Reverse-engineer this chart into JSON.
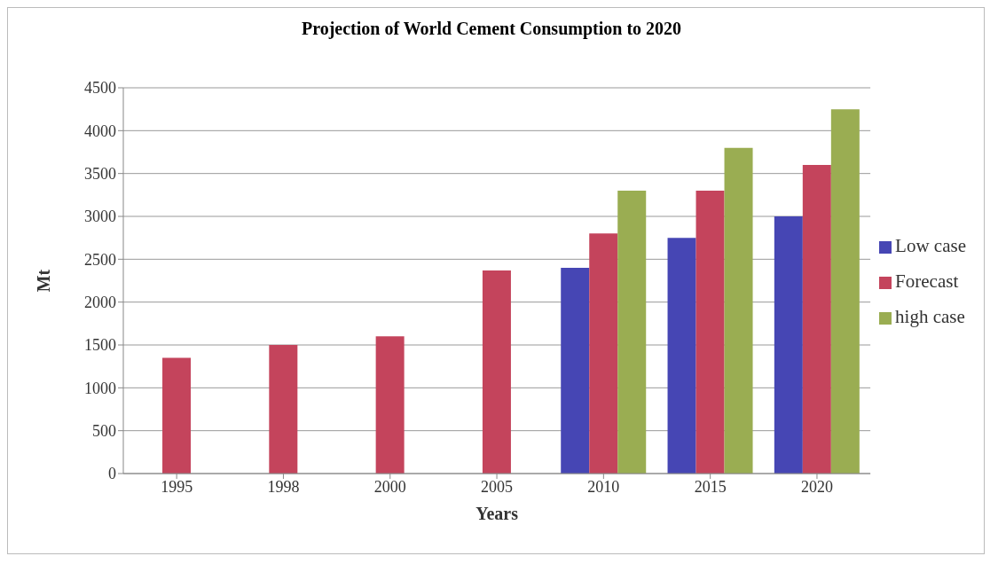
{
  "chart_data": {
    "type": "bar",
    "title": "Projection of World Cement Consumption to 2020",
    "xlabel": "Years",
    "ylabel": "Mt",
    "categories": [
      "1995",
      "1998",
      "2000",
      "2005",
      "2010",
      "2015",
      "2020"
    ],
    "series": [
      {
        "name": "Low case",
        "color": "#4646b4",
        "values": [
          null,
          null,
          null,
          null,
          2400,
          2750,
          3000
        ]
      },
      {
        "name": "Forecast",
        "color": "#c4445c",
        "values": [
          1350,
          1500,
          1600,
          2370,
          2800,
          3300,
          3600
        ]
      },
      {
        "name": "high case",
        "color": "#9aad52",
        "values": [
          null,
          null,
          null,
          null,
          3300,
          3800,
          4250
        ]
      }
    ],
    "ylim": [
      0,
      4500
    ],
    "yticks": [
      0,
      500,
      1000,
      1500,
      2000,
      2500,
      3000,
      3500,
      4000,
      4500
    ],
    "grid": "y",
    "legend": "right"
  }
}
